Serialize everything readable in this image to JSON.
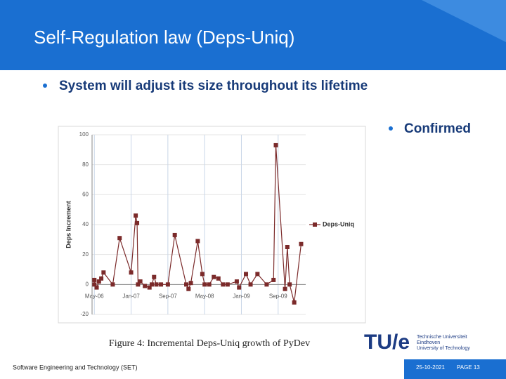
{
  "slide": {
    "title": "Self-Regulation law (Deps-Uniq)",
    "bullets": [
      "System will adjust its size throughout its lifetime",
      "Confirmed"
    ],
    "caption": "Figure 4: Incremental Deps-Uniq growth of PyDev",
    "logo": {
      "mark": "TU/e",
      "lines": [
        "Technische Universiteit",
        "Eindhoven",
        "University of Technology"
      ]
    },
    "footer": {
      "left": "Software Engineering and Technology (SET)",
      "date": "25-10-2021",
      "page": "PAGE 13"
    }
  },
  "chart_data": {
    "type": "line",
    "y_label": "Deps Increment",
    "x": [
      0,
      0,
      0.5,
      1,
      1.5,
      2,
      4,
      5.5,
      8,
      9,
      9.3,
      9.5,
      10,
      11,
      12,
      12.5,
      13,
      13.5,
      14.5,
      16,
      17.5,
      20,
      20.5,
      21,
      22.5,
      23.5,
      24,
      25,
      26,
      27,
      28,
      29,
      31,
      31.5,
      33,
      34,
      35.5,
      37.5,
      39,
      39.5,
      41.5,
      42,
      42.5,
      43.5,
      45
    ],
    "series": [
      {
        "name": "Deps-Uniq",
        "color": "#7b2a2a",
        "values": [
          3,
          0,
          -2,
          2,
          4,
          8,
          0,
          31,
          8,
          46,
          41,
          0,
          2,
          -1,
          -2,
          0,
          5,
          0,
          0,
          0,
          33,
          0,
          -3,
          1,
          29,
          7,
          0,
          0,
          5,
          4,
          0,
          0,
          2,
          -2,
          7,
          0,
          7,
          0,
          3,
          93,
          -3,
          25,
          0,
          -12,
          27
        ]
      }
    ],
    "xlim": [
      -0.5,
      46
    ],
    "xticks": [
      {
        "value": 0,
        "label": "May-06"
      },
      {
        "value": 8,
        "label": "Jan-07"
      },
      {
        "value": 16,
        "label": "Sep-07"
      },
      {
        "value": 24,
        "label": "May-08"
      },
      {
        "value": 32,
        "label": "Jan-09"
      },
      {
        "value": 40,
        "label": "Sep-09"
      }
    ],
    "ylim": [
      -20,
      100
    ],
    "yticks": [
      -20,
      0,
      20,
      40,
      60,
      80,
      100
    ],
    "grid": true
  }
}
